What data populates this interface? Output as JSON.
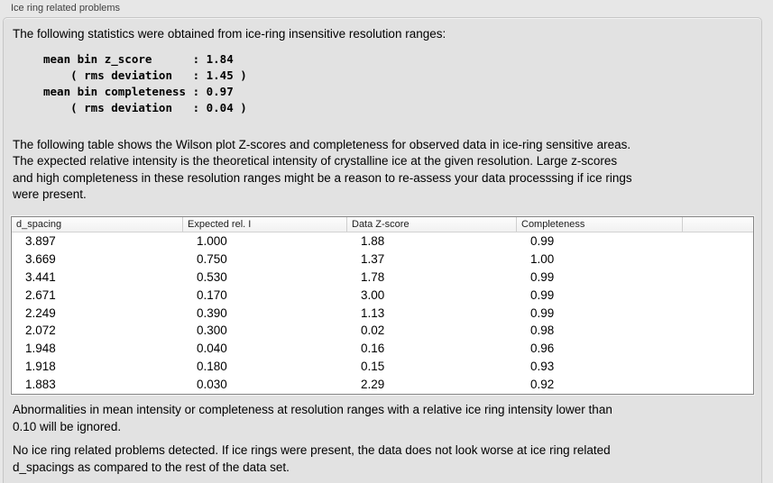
{
  "group": {
    "title": "Ice ring related problems"
  },
  "colors": {
    "window_bg": "#e7e7e7",
    "panel_bg": "#e2e2e2",
    "panel_border": "#c6c6c6",
    "table_border": "#848484",
    "table_header_bg": "#f7f7f7",
    "text": "#000000"
  },
  "intro_text": "The following statistics were obtained from ice-ring insensitive resolution ranges:",
  "stats_block": "mean bin z_score      : 1.84\n    ( rms deviation   : 1.45 )\nmean bin completeness : 0.97\n    ( rms deviation   : 0.04 )",
  "stats": {
    "mean_bin_z_score": "1.84",
    "z_score_rms_deviation": "1.45",
    "mean_bin_completeness": "0.97",
    "completeness_rms_deviation": "0.04"
  },
  "description_text": "The following table shows the Wilson plot Z-scores and completeness for observed data in ice-ring sensitive areas.\nThe expected relative intensity is the theoretical intensity of crystalline ice at the given resolution. Large z-scores\nand high completeness in these resolution ranges might be a reason to re-assess your data processsing if ice rings\nwere present.",
  "table": {
    "columns": [
      "d_spacing",
      "Expected rel. I",
      "Data Z-score",
      "Completeness"
    ],
    "rows": [
      [
        "3.897",
        "1.000",
        "1.88",
        "0.99"
      ],
      [
        "3.669",
        "0.750",
        "1.37",
        "1.00"
      ],
      [
        "3.441",
        "0.530",
        "1.78",
        "0.99"
      ],
      [
        "2.671",
        "0.170",
        "3.00",
        "0.99"
      ],
      [
        "2.249",
        "0.390",
        "1.13",
        "0.99"
      ],
      [
        "2.072",
        "0.300",
        "0.02",
        "0.98"
      ],
      [
        "1.948",
        "0.040",
        "0.16",
        "0.96"
      ],
      [
        "1.918",
        "0.180",
        "0.15",
        "0.93"
      ],
      [
        "1.883",
        "0.030",
        "2.29",
        "0.92"
      ]
    ]
  },
  "footer": {
    "ignore_note": "Abnormalities in mean intensity or completeness at resolution ranges with a relative ice ring intensity lower than\n0.10 will be ignored.",
    "result_text": "No ice ring related problems detected. If ice rings were present, the data does not look worse at ice ring related\nd_spacings as compared to the rest of the data set."
  }
}
